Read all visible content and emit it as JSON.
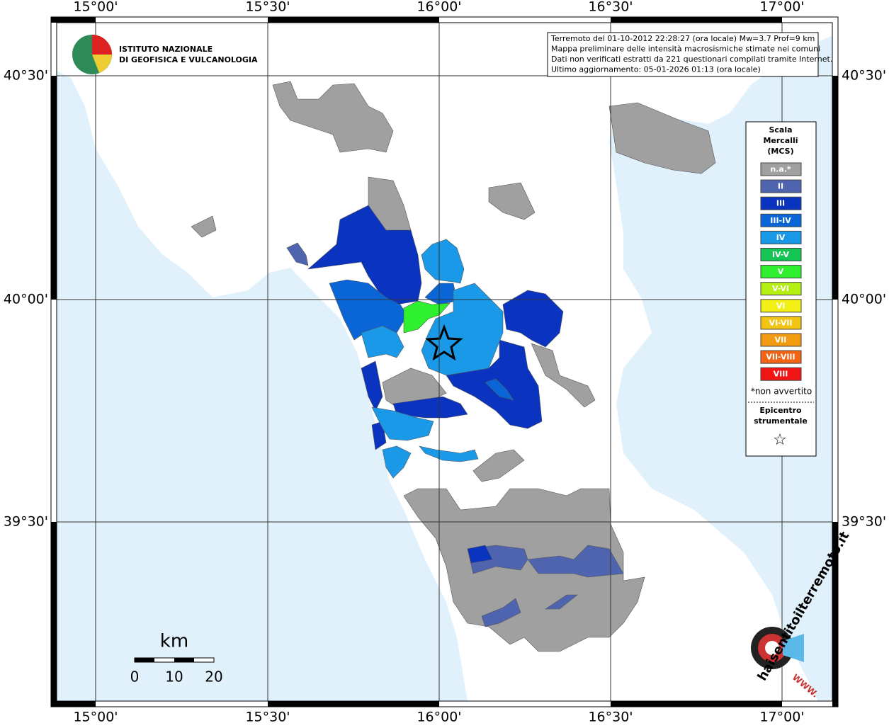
{
  "map": {
    "lon_labels": [
      "15°00'",
      "15°30'",
      "16°00'",
      "16°30'",
      "17°00'"
    ],
    "lat_labels": [
      "40°30'",
      "40°00'",
      "39°30'"
    ],
    "sea_color": "#e1f1fc",
    "land_color": "#ffffff"
  },
  "logo": {
    "lines": [
      "ISTITUTO NAZIONALE",
      "DI GEOFISICA E VULCANOLOGIA"
    ]
  },
  "info_box": {
    "lines": [
      "Terremoto del 01-10-2012 22:28:27 (ora locale) Mw=3.7 Prof=9 km",
      "Mappa preliminare delle intensità macrosismiche stimate nei comuni",
      "Dati non verificati estratti da 221 questionari compilati tramite Internet.",
      "Ultimo aggiornamento: 05-01-2026 01:13 (ora locale)"
    ]
  },
  "legend": {
    "title": [
      "Scala",
      "Mercalli",
      "(MCS)"
    ],
    "items": [
      {
        "label": "n.a.*",
        "color": "#a0a0a0"
      },
      {
        "label": "II",
        "color": "#4f64ae"
      },
      {
        "label": "III",
        "color": "#0a34c0"
      },
      {
        "label": "III-IV",
        "color": "#0a66d6"
      },
      {
        "label": "IV",
        "color": "#1a99e8"
      },
      {
        "label": "IV-V",
        "color": "#14c454"
      },
      {
        "label": "V",
        "color": "#2ef02e"
      },
      {
        "label": "V-VI",
        "color": "#b4f014"
      },
      {
        "label": "VI",
        "color": "#f2f014"
      },
      {
        "label": "VI-VII",
        "color": "#f2c414"
      },
      {
        "label": "VII",
        "color": "#f29a10"
      },
      {
        "label": "VII-VIII",
        "color": "#f26414"
      },
      {
        "label": "VIII",
        "color": "#f01414"
      }
    ],
    "note": "*non avvertito",
    "epicenter": [
      "Epicentro",
      "strumentale"
    ],
    "star": "☆"
  },
  "scale_bar": {
    "unit": "km",
    "ticks": [
      "0",
      "10",
      "20"
    ]
  },
  "site_logo": {
    "text": "haisentitoilterremoto.it",
    "www": "WWW."
  }
}
